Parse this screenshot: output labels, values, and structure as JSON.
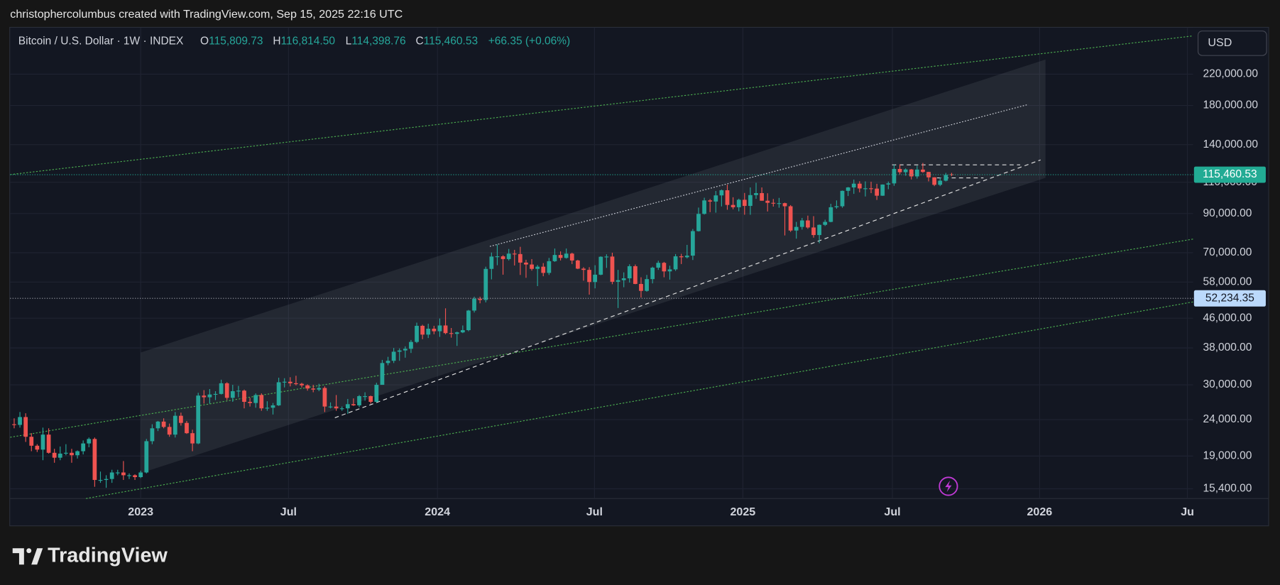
{
  "header": {
    "attribution": "christophercolumbus created with TradingView.com, Sep 15, 2025 22:16 UTC"
  },
  "chart_data": {
    "type": "candlestick",
    "symbol": "Bitcoin / U.S. Dollar · 1W · INDEX",
    "legend": {
      "o": "O",
      "open": "115,809.73",
      "h": "H",
      "high": "116,814.50",
      "l": "L",
      "low": "114,398.76",
      "c": "C",
      "close": "115,460.53",
      "change": "+66.35 (+0.06%)"
    },
    "currency": "USD",
    "log_scale": true,
    "grid": true,
    "up_color": "#26a69a",
    "down_color": "#ef5350",
    "xlim": [
      -0.7,
      205
    ],
    "ylim": [
      14470,
      296300
    ],
    "xticks": [
      {
        "value": 22,
        "label": "2023"
      },
      {
        "value": 47.7,
        "label": "Jul"
      },
      {
        "value": 73.6,
        "label": "2024"
      },
      {
        "value": 100.9,
        "label": "Jul"
      },
      {
        "value": 126.7,
        "label": "2025"
      },
      {
        "value": 152.7,
        "label": "Jul"
      },
      {
        "value": 178.3,
        "label": "2026"
      },
      {
        "value": 204,
        "label": "Ju"
      }
    ],
    "yticks": [
      {
        "value": 15400,
        "label": "15,400.00"
      },
      {
        "value": 19000,
        "label": "19,000.00"
      },
      {
        "value": 24000,
        "label": "24,000.00"
      },
      {
        "value": 30000,
        "label": "30,000.00"
      },
      {
        "value": 38000,
        "label": "38,000.00"
      },
      {
        "value": 46000,
        "label": "46,000.00"
      },
      {
        "value": 58000,
        "label": "58,000.00"
      },
      {
        "value": 70000,
        "label": "70,000.00"
      },
      {
        "value": 90000,
        "label": "90,000.00"
      },
      {
        "value": 110000,
        "label": "110,000.00"
      },
      {
        "value": 140000,
        "label": "140,000.00"
      },
      {
        "value": 180000,
        "label": "180,000.00"
      },
      {
        "value": 220000,
        "label": "220,000.00"
      }
    ],
    "price_lines": [
      {
        "value": 115460.53,
        "label": "115,460.53",
        "color": "#22ab94",
        "text_color": "#ffffff"
      },
      {
        "value": 52234.35,
        "label": "52,234.35",
        "color": "#bbd9fb",
        "text_color": "#131722"
      }
    ],
    "x": [
      0,
      1,
      2,
      3,
      4,
      5,
      6,
      7,
      8,
      9,
      10,
      11,
      12,
      13,
      14,
      15,
      16,
      17,
      18,
      19,
      20,
      21,
      22,
      23,
      24,
      25,
      26,
      27,
      28,
      29,
      30,
      31,
      32,
      33,
      34,
      35,
      36,
      37,
      38,
      39,
      40,
      41,
      42,
      43,
      44,
      45,
      46,
      47,
      48,
      49,
      50,
      51,
      52,
      53,
      54,
      55,
      56,
      57,
      58,
      59,
      60,
      61,
      62,
      63,
      64,
      65,
      66,
      67,
      68,
      69,
      70,
      71,
      72,
      73,
      74,
      75,
      76,
      77,
      78,
      79,
      80,
      81,
      82,
      83,
      84,
      85,
      86,
      87,
      88,
      89,
      90,
      91,
      92,
      93,
      94,
      95,
      96,
      97,
      98,
      99,
      100,
      101,
      102,
      103,
      104,
      105,
      106,
      107,
      108,
      109,
      110,
      111,
      112,
      113,
      114,
      115,
      116,
      117,
      118,
      119,
      120,
      121,
      122,
      123,
      124,
      125,
      126,
      127,
      128,
      129,
      130,
      131,
      132,
      133,
      134,
      135,
      136,
      137,
      138,
      139,
      140,
      141,
      142,
      143,
      144,
      145,
      146,
      147,
      148,
      149,
      150,
      151,
      152,
      153,
      154,
      155,
      156,
      157,
      158,
      159,
      160,
      161,
      162,
      163
    ],
    "candles": [
      [
        23300,
        24200,
        22700,
        23200
      ],
      [
        23200,
        25200,
        22800,
        24400
      ],
      [
        24400,
        25000,
        20800,
        21500
      ],
      [
        21500,
        22000,
        19600,
        20300
      ],
      [
        20300,
        20500,
        19500,
        19800
      ],
      [
        19800,
        22800,
        18500,
        21800
      ],
      [
        21800,
        22700,
        19300,
        19400
      ],
      [
        19400,
        19900,
        18200,
        18800
      ],
      [
        18800,
        20200,
        18500,
        19300
      ],
      [
        19300,
        20500,
        19100,
        19400
      ],
      [
        19400,
        19900,
        18200,
        19100
      ],
      [
        19100,
        19700,
        18700,
        19600
      ],
      [
        19600,
        21000,
        19200,
        20600
      ],
      [
        20600,
        21400,
        20100,
        21200
      ],
      [
        21200,
        21400,
        15600,
        16300
      ],
      [
        16300,
        17200,
        16000,
        16300
      ],
      [
        16300,
        16800,
        15500,
        16400
      ],
      [
        16400,
        17400,
        16000,
        17100
      ],
      [
        17100,
        17400,
        16800,
        17100
      ],
      [
        17100,
        18400,
        16300,
        16800
      ],
      [
        16800,
        17000,
        16400,
        16800
      ],
      [
        16800,
        16900,
        16300,
        16600
      ],
      [
        16600,
        17300,
        16500,
        17100
      ],
      [
        17100,
        21200,
        17000,
        20900
      ],
      [
        20900,
        23300,
        20500,
        22700
      ],
      [
        22700,
        23800,
        22300,
        23700
      ],
      [
        23700,
        24200,
        22700,
        22900
      ],
      [
        22900,
        23400,
        21500,
        21800
      ],
      [
        21800,
        25200,
        21400,
        24600
      ],
      [
        24600,
        25100,
        23100,
        23500
      ],
      [
        23500,
        23800,
        21900,
        22000
      ],
      [
        22000,
        22500,
        19600,
        20600
      ],
      [
        20600,
        28500,
        20500,
        28000
      ],
      [
        28000,
        29000,
        26600,
        27700
      ],
      [
        27700,
        29200,
        26600,
        28200
      ],
      [
        28200,
        28800,
        27200,
        28300
      ],
      [
        28300,
        31000,
        28200,
        30300
      ],
      [
        30300,
        30500,
        27200,
        27600
      ],
      [
        27600,
        30000,
        26900,
        28800
      ],
      [
        28800,
        29800,
        27700,
        28900
      ],
      [
        28900,
        29100,
        25800,
        26900
      ],
      [
        26900,
        27600,
        26100,
        26700
      ],
      [
        26700,
        28400,
        25900,
        28100
      ],
      [
        28100,
        28400,
        25400,
        25800
      ],
      [
        25800,
        27000,
        25400,
        25900
      ],
      [
        25900,
        26700,
        24800,
        26300
      ],
      [
        26300,
        31400,
        26200,
        30500
      ],
      [
        30500,
        31300,
        29500,
        30600
      ],
      [
        30600,
        31500,
        29700,
        30300
      ],
      [
        30300,
        31800,
        29900,
        30200
      ],
      [
        30200,
        30400,
        29500,
        29900
      ],
      [
        29900,
        30100,
        28900,
        29300
      ],
      [
        29300,
        30000,
        28600,
        29100
      ],
      [
        29100,
        30200,
        28800,
        29400
      ],
      [
        29400,
        29700,
        25200,
        26100
      ],
      [
        26100,
        26800,
        25800,
        26100
      ],
      [
        26100,
        28100,
        25400,
        25800
      ],
      [
        25800,
        26100,
        25400,
        25800
      ],
      [
        25800,
        27400,
        24900,
        26500
      ],
      [
        26500,
        27500,
        26200,
        26300
      ],
      [
        26300,
        28100,
        26000,
        27900
      ],
      [
        27900,
        28600,
        27100,
        27900
      ],
      [
        27900,
        28000,
        26600,
        26900
      ],
      [
        26900,
        30400,
        26800,
        30000
      ],
      [
        30000,
        35200,
        30000,
        34500
      ],
      [
        34500,
        35900,
        34000,
        35000
      ],
      [
        35000,
        38000,
        34500,
        37100
      ],
      [
        37100,
        37900,
        35000,
        37400
      ],
      [
        37400,
        38400,
        35700,
        37800
      ],
      [
        37800,
        40000,
        36800,
        39500
      ],
      [
        39500,
        44700,
        39200,
        43800
      ],
      [
        43800,
        44100,
        40200,
        41400
      ],
      [
        41400,
        44400,
        40500,
        43000
      ],
      [
        43000,
        43800,
        41500,
        42300
      ],
      [
        42300,
        45900,
        40800,
        43900
      ],
      [
        43900,
        49000,
        41500,
        41800
      ],
      [
        41800,
        43200,
        40600,
        41600
      ],
      [
        41600,
        42200,
        38500,
        42000
      ],
      [
        42000,
        43900,
        41800,
        42600
      ],
      [
        42600,
        48500,
        42300,
        48300
      ],
      [
        48300,
        52800,
        47700,
        52100
      ],
      [
        52100,
        52800,
        50600,
        51700
      ],
      [
        51700,
        64000,
        50900,
        63100
      ],
      [
        63100,
        70100,
        59000,
        68300
      ],
      [
        68300,
        73800,
        64600,
        68400
      ],
      [
        68400,
        68900,
        60800,
        67200
      ],
      [
        67200,
        71700,
        66600,
        69600
      ],
      [
        69600,
        71300,
        64500,
        69400
      ],
      [
        69400,
        72700,
        60700,
        65700
      ],
      [
        65700,
        66900,
        59600,
        64900
      ],
      [
        64900,
        67200,
        62400,
        63100
      ],
      [
        63100,
        64700,
        56500,
        64000
      ],
      [
        64000,
        65500,
        60200,
        61500
      ],
      [
        61500,
        67700,
        60700,
        66300
      ],
      [
        66300,
        71900,
        66000,
        69000
      ],
      [
        69000,
        70600,
        66600,
        67700
      ],
      [
        67700,
        71900,
        67400,
        69600
      ],
      [
        69600,
        70000,
        65100,
        66600
      ],
      [
        66600,
        66900,
        63000,
        63200
      ],
      [
        63200,
        63800,
        58500,
        62700
      ],
      [
        62700,
        63800,
        53500,
        58000
      ],
      [
        58000,
        64600,
        55700,
        60800
      ],
      [
        60800,
        68400,
        60600,
        68200
      ],
      [
        68200,
        69300,
        63500,
        68300
      ],
      [
        68300,
        70000,
        57200,
        58100
      ],
      [
        58100,
        62700,
        49100,
        58700
      ],
      [
        58700,
        61700,
        56100,
        59400
      ],
      [
        59400,
        65000,
        57800,
        64200
      ],
      [
        64200,
        64900,
        57200,
        57300
      ],
      [
        57300,
        59800,
        52500,
        54800
      ],
      [
        54800,
        60700,
        54500,
        59100
      ],
      [
        59100,
        64000,
        57500,
        63600
      ],
      [
        63600,
        66500,
        62700,
        65600
      ],
      [
        65600,
        66000,
        59800,
        62100
      ],
      [
        62100,
        64400,
        58900,
        62900
      ],
      [
        62900,
        69400,
        62300,
        68400
      ],
      [
        68400,
        69500,
        65100,
        68000
      ],
      [
        68000,
        73600,
        67500,
        68700
      ],
      [
        68700,
        81500,
        66800,
        80400
      ],
      [
        80400,
        93500,
        80200,
        89800
      ],
      [
        89800,
        99600,
        89400,
        97900
      ],
      [
        97900,
        98800,
        90800,
        97200
      ],
      [
        97200,
        104000,
        90500,
        101100
      ],
      [
        101100,
        105000,
        94200,
        104500
      ],
      [
        104500,
        108300,
        92200,
        95100
      ],
      [
        95100,
        99900,
        92500,
        93700
      ],
      [
        93700,
        99000,
        91300,
        98300
      ],
      [
        98300,
        102700,
        89300,
        94500
      ],
      [
        94500,
        106400,
        89300,
        101300
      ],
      [
        101300,
        109600,
        98900,
        102600
      ],
      [
        102600,
        106400,
        97700,
        97700
      ],
      [
        97700,
        102500,
        91200,
        96400
      ],
      [
        96400,
        98800,
        94100,
        96100
      ],
      [
        96100,
        99500,
        93400,
        96200
      ],
      [
        96200,
        96500,
        78200,
        94300
      ],
      [
        94300,
        95000,
        80000,
        80700
      ],
      [
        80700,
        85300,
        76600,
        82600
      ],
      [
        82600,
        87500,
        81200,
        86100
      ],
      [
        86100,
        88800,
        81600,
        82300
      ],
      [
        82300,
        88500,
        77100,
        78400
      ],
      [
        78400,
        83900,
        74400,
        83700
      ],
      [
        83700,
        86500,
        83100,
        85300
      ],
      [
        85300,
        95800,
        85100,
        93700
      ],
      [
        93700,
        97900,
        92800,
        94300
      ],
      [
        94300,
        104300,
        93400,
        104100
      ],
      [
        104100,
        106700,
        100700,
        106400
      ],
      [
        106400,
        111900,
        102100,
        109000
      ],
      [
        109000,
        110700,
        103100,
        105700
      ],
      [
        105700,
        110600,
        100400,
        105800
      ],
      [
        105800,
        110400,
        102600,
        105600
      ],
      [
        105600,
        108900,
        98200,
        100900
      ],
      [
        100900,
        108500,
        100800,
        108400
      ],
      [
        108400,
        110500,
        105200,
        109200
      ],
      [
        109200,
        123200,
        107500,
        119800
      ],
      [
        119800,
        123200,
        115700,
        117300
      ],
      [
        117300,
        120200,
        114700,
        119400
      ],
      [
        119400,
        119800,
        112000,
        114200
      ],
      [
        114200,
        122300,
        112600,
        119300
      ],
      [
        119300,
        124500,
        116900,
        117500
      ],
      [
        117500,
        117600,
        110600,
        113500
      ],
      [
        113500,
        113600,
        107300,
        108200
      ],
      [
        108200,
        113400,
        107300,
        111100
      ],
      [
        111100,
        116800,
        110600,
        115300
      ],
      [
        115809.73,
        116814.5,
        114398.76,
        115460.53
      ]
    ]
  },
  "footer": {
    "brand": "TradingView"
  }
}
